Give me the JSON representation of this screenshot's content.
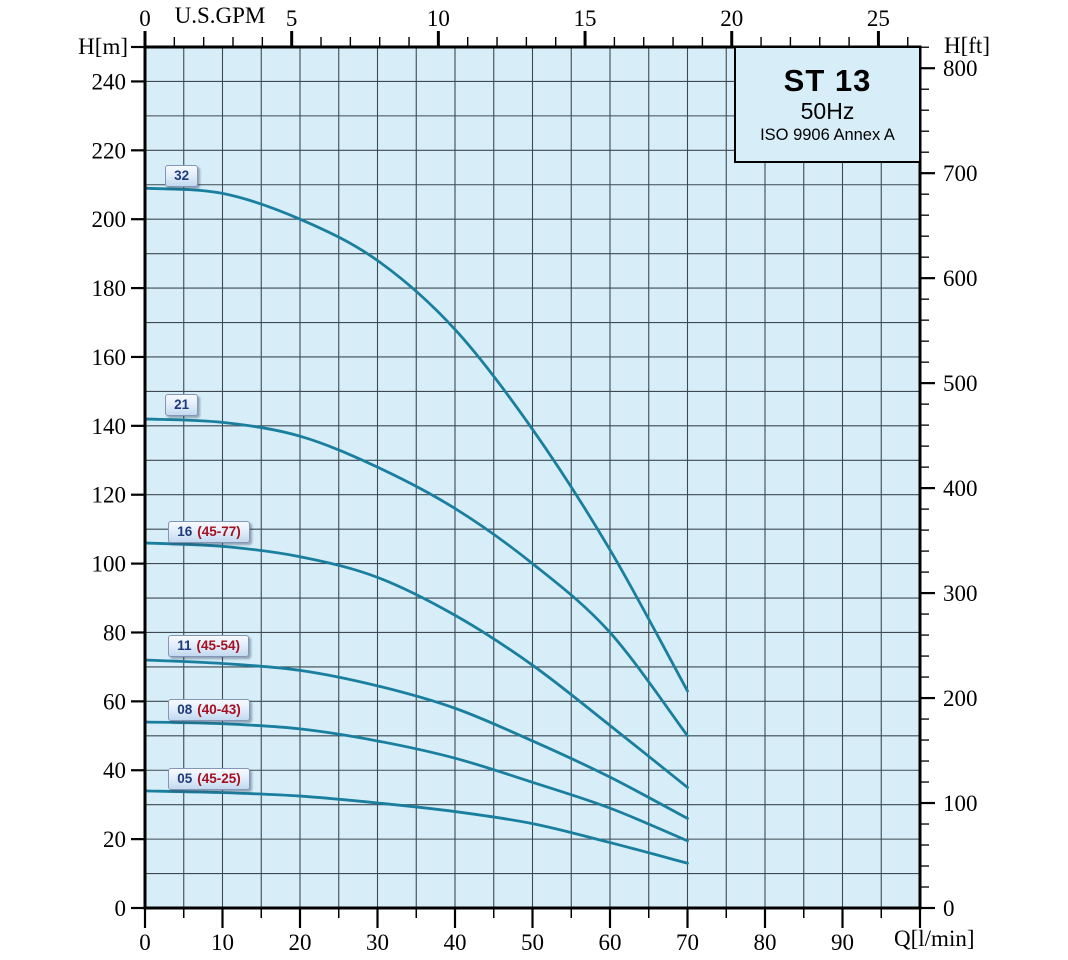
{
  "title_box": {
    "model": "ST 13",
    "frequency": "50Hz",
    "standard": "ISO 9906 Annex A"
  },
  "axis_labels": {
    "top": "U.S.GPM",
    "bottom": "Q[l/min]",
    "left": "H[m]",
    "right": "H[ft]"
  },
  "axes": {
    "top_gpm": {
      "major_ticks": [
        0,
        5,
        10,
        15,
        20,
        25
      ],
      "minor_step": 1,
      "minor_max": 26,
      "lmin_per_gpm": 3.78541
    },
    "bottom_lmin": {
      "major_ticks": [
        0,
        10,
        20,
        30,
        40,
        50,
        60,
        70,
        80,
        90
      ],
      "unlabeled_major": [
        100
      ],
      "minor_step": 5,
      "max": 100
    },
    "left_m": {
      "major_ticks": [
        0,
        20,
        40,
        60,
        80,
        100,
        120,
        140,
        160,
        180,
        200,
        220,
        240
      ],
      "unlabeled_major": [
        250
      ],
      "max": 250
    },
    "right_ft": {
      "major_ticks": [
        0,
        100,
        200,
        300,
        400,
        500,
        600,
        700,
        800
      ],
      "minor_step": 20,
      "minor_max": 820,
      "m_per_ft": 0.3048
    }
  },
  "chart_data": {
    "type": "line",
    "title": "ST 13 50Hz pump head-flow performance curves",
    "xlabel": "Q[l/min]",
    "x2label": "U.S.GPM",
    "ylabel": "H[m]",
    "y2label": "H[ft]",
    "xlim": [
      0,
      100
    ],
    "ylim": [
      0,
      250
    ],
    "grid": {
      "x_step": 5,
      "y_step": 10,
      "on": true
    },
    "legend_position": "labels-on-curves",
    "x": [
      0,
      10,
      20,
      30,
      40,
      50,
      60,
      70
    ],
    "series": [
      {
        "name": "32",
        "values": [
          209,
          207.5,
          200,
          188,
          168,
          139,
          104,
          63
        ]
      },
      {
        "name": "21",
        "values": [
          142,
          141,
          137,
          128,
          116,
          100,
          80,
          50
        ]
      },
      {
        "name": "16 (45-77)",
        "values": [
          106,
          105,
          102,
          96,
          85,
          70.5,
          53,
          35
        ]
      },
      {
        "name": "11 (45-54)",
        "values": [
          72,
          71,
          69,
          64.5,
          58,
          48.5,
          38,
          26
        ]
      },
      {
        "name": "08 (40-43)",
        "values": [
          54,
          53.5,
          52,
          48.5,
          43.5,
          36.5,
          29,
          19.5
        ]
      },
      {
        "name": "05 (45-25)",
        "values": [
          34,
          33.5,
          32.5,
          30.5,
          28,
          24.5,
          19,
          13
        ]
      }
    ]
  },
  "curve_labels": [
    {
      "num": "32",
      "paren": "",
      "q": 2.6,
      "h": 212.5
    },
    {
      "num": "21",
      "paren": "",
      "q": 2.6,
      "h": 146.0
    },
    {
      "num": "16",
      "paren": "(45-77)",
      "q": 3.0,
      "h": 109.3
    },
    {
      "num": "11",
      "paren": "(45-54)",
      "q": 3.0,
      "h": 76.0
    },
    {
      "num": "08",
      "paren": "(40-43)",
      "q": 3.0,
      "h": 57.6
    },
    {
      "num": "05",
      "paren": "(45-25)",
      "q": 3.0,
      "h": 37.4
    }
  ],
  "colors": {
    "plot_background": "#d7eef9",
    "grid_line": "#3d4a52",
    "plot_border": "#000000",
    "curve": "#1a7f9e",
    "tick": "#000000",
    "text": "#000000",
    "label_number": "#1e3a7d",
    "label_paren": "#a51020",
    "label_box_border": "#8496b5",
    "title_box_background": "#d7eef9"
  }
}
